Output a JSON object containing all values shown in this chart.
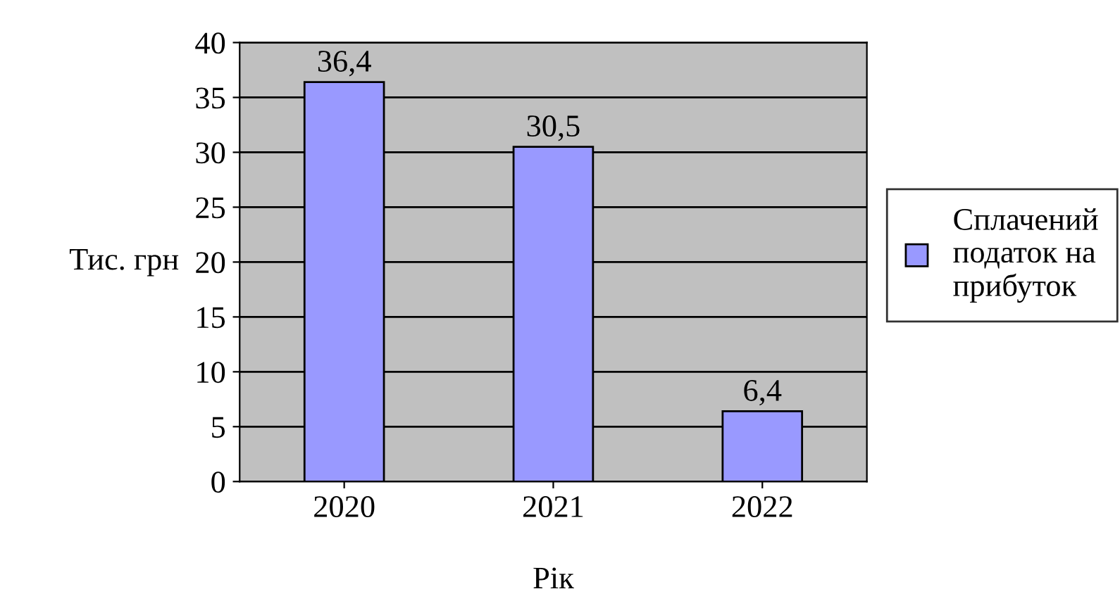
{
  "chart_data": {
    "type": "bar",
    "xlabel": "Рік",
    "ylabel": "Тис. грн",
    "categories": [
      "2020",
      "2021",
      "2022"
    ],
    "series": [
      {
        "name": "Сплачений податок на прибуток",
        "color": "#9999ff",
        "values": [
          36.4,
          30.5,
          6.4
        ],
        "value_labels": [
          "36,4",
          "30,5",
          "6,4"
        ]
      }
    ],
    "ylim": [
      0,
      40
    ],
    "yticks": [
      0,
      5,
      10,
      15,
      20,
      25,
      30,
      35,
      40
    ],
    "grid": "y",
    "legend": "right"
  }
}
